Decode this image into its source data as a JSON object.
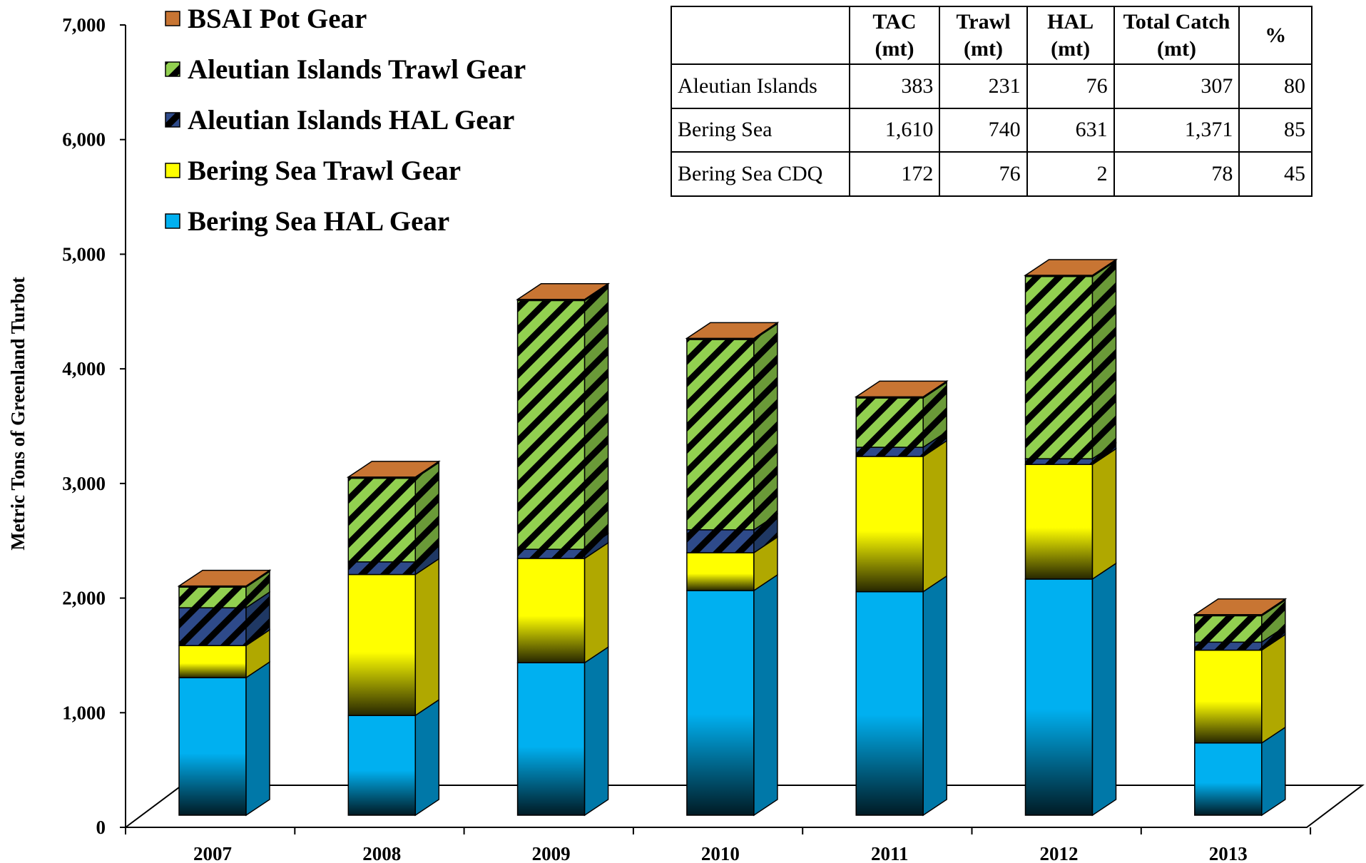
{
  "chart_data": {
    "type": "bar",
    "stacked": true,
    "three_d": true,
    "categories": [
      "2007",
      "2008",
      "2009",
      "2010",
      "2011",
      "2012",
      "2013"
    ],
    "ylabel": "Metric Tons of Greenland Turbot",
    "ylim": [
      0,
      7000
    ],
    "yticks": [
      0,
      1000,
      2000,
      3000,
      4000,
      5000,
      6000,
      7000
    ],
    "ytick_labels": [
      "0",
      "1,000",
      "2,000",
      "3,000",
      "4,000",
      "5,000",
      "6,000",
      "7,000"
    ],
    "legend_position": "top-left",
    "series": [
      {
        "name": "Bering Sea HAL Gear",
        "values": [
          1200,
          870,
          1330,
          1960,
          1950,
          2060,
          630
        ],
        "color": "#00b0f0",
        "side": "#0078a8",
        "pattern": "solid"
      },
      {
        "name": "Bering Sea Trawl Gear",
        "values": [
          280,
          1230,
          910,
          330,
          1180,
          1000,
          810
        ],
        "color": "#ffff00",
        "side": "#b0a800",
        "pattern": "solid"
      },
      {
        "name": "Aleutian Islands HAL Gear",
        "values": [
          330,
          110,
          80,
          200,
          80,
          50,
          70
        ],
        "color": "#1f3864",
        "side": "#132444",
        "pattern": "stripes"
      },
      {
        "name": "Aleutian Islands Trawl Gear",
        "values": [
          180,
          730,
          2170,
          1660,
          430,
          1590,
          230
        ],
        "color": "#92d050",
        "side": "#6a9a38",
        "pattern": "stripes"
      },
      {
        "name": "BSAI Pot Gear",
        "values": [
          10,
          10,
          10,
          10,
          10,
          10,
          10
        ],
        "color": "#c87533",
        "side": "#8e5020",
        "pattern": "solid"
      }
    ],
    "legend_order": [
      "BSAI Pot Gear",
      "Aleutian Islands Trawl Gear",
      "Aleutian Islands HAL Gear",
      "Bering Sea Trawl Gear",
      "Bering Sea HAL Gear"
    ],
    "table": {
      "headers": [
        {
          "line1": "",
          "line2": ""
        },
        {
          "line1": "TAC",
          "line2": "(mt)"
        },
        {
          "line1": "Trawl",
          "line2": "(mt)"
        },
        {
          "line1": "HAL",
          "line2": "(mt)"
        },
        {
          "line1": "Total Catch",
          "line2": "(mt)"
        },
        {
          "line1": "%",
          "line2": ""
        }
      ],
      "rows": [
        [
          "Aleutian Islands",
          "383",
          "231",
          "76",
          "307",
          "80"
        ],
        [
          "Bering Sea",
          "1,610",
          "740",
          "631",
          "1,371",
          "85"
        ],
        [
          "Bering Sea CDQ",
          "172",
          "76",
          "2",
          "78",
          "45"
        ]
      ]
    }
  }
}
